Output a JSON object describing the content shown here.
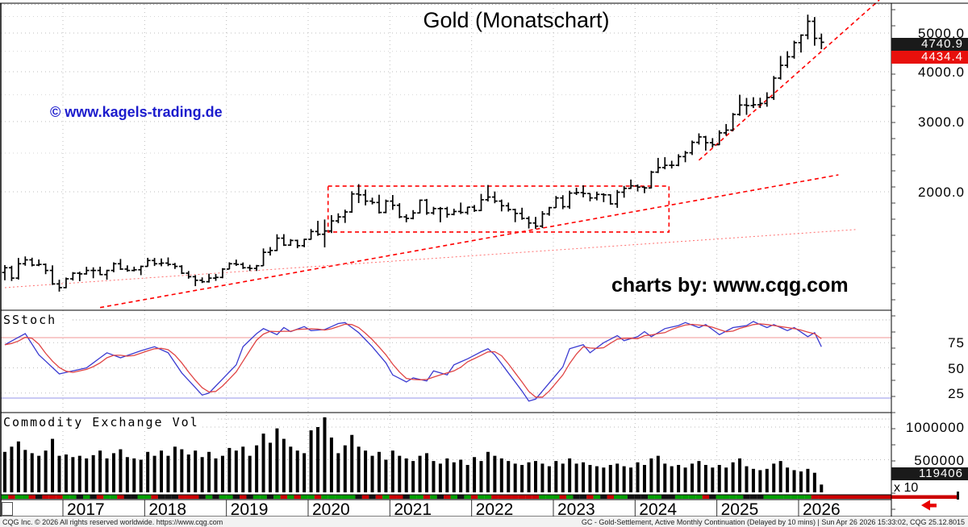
{
  "title": "Gold (Monatschart)",
  "watermark": "© www.kagels-trading.de",
  "credit": "charts by: www.cqg.com",
  "price_badges": {
    "last": "4740.9",
    "settlement": "4434.4"
  },
  "price_axis_labels": [
    "5000.0",
    "4000.0",
    "3000.0",
    "2000.0"
  ],
  "stoch_panel": {
    "label": "SStoch",
    "tick_labels": [
      "75",
      "50",
      "25"
    ]
  },
  "volume_panel": {
    "label": "Commodity Exchange Vol",
    "tick_labels": [
      "1000000",
      "500000"
    ],
    "last_badge": "119406",
    "multiplier": "x 10"
  },
  "x_axis_years": [
    "2017",
    "2018",
    "2019",
    "2020",
    "2021",
    "2022",
    "2023",
    "2024",
    "2025",
    "2026"
  ],
  "status_bar": {
    "left": "CQG Inc. © 2026 All rights reserved worldwide. https://www.cqg.com",
    "right": "GC - Gold-Settlement, Active Monthly Continuation (Delayed by 10 mins) | Sun Apr 26 2026 15:33:02, CQG 25.12.8015"
  },
  "colors": {
    "bars": "#000000",
    "trend": "#ff0000",
    "support_dotted": "#ff7070",
    "stoch_k": "#3b3bd1",
    "stoch_d": "#e04444",
    "overbought_line": "#f5b8b8",
    "oversold_line": "#b8b8f0",
    "badge_black": "#1a1a1a",
    "badge_red": "#e8100c",
    "strip_up": "#00a000",
    "strip_down": "#cc0000",
    "strip_flat": "#111111",
    "watermark_blue": "#1c1ccd",
    "grid": "#bdbdbd"
  },
  "chart_data": {
    "type": "ohlc-bar",
    "title": "Gold (Monatschart)",
    "frequency": "monthly",
    "start": "2016-04",
    "price_scale": "log",
    "price_axis_ticks": [
      5000,
      4000,
      3000,
      2000
    ],
    "last_price": 4740.9,
    "settlement_price": 4434.4,
    "bars": [
      [
        1310,
        1200,
        1290
      ],
      [
        1305,
        1195,
        1215
      ],
      [
        1365,
        1205,
        1320
      ],
      [
        1377,
        1305,
        1350
      ],
      [
        1367,
        1300,
        1310
      ],
      [
        1353,
        1302,
        1315
      ],
      [
        1322,
        1243,
        1270
      ],
      [
        1308,
        1168,
        1175
      ],
      [
        1204,
        1124,
        1150
      ],
      [
        1219,
        1146,
        1210
      ],
      [
        1258,
        1198,
        1250
      ],
      [
        1261,
        1194,
        1245
      ],
      [
        1297,
        1240,
        1270
      ],
      [
        1293,
        1214,
        1270
      ],
      [
        1298,
        1236,
        1240
      ],
      [
        1275,
        1204,
        1270
      ],
      [
        1331,
        1257,
        1320
      ],
      [
        1357,
        1274,
        1280
      ],
      [
        1308,
        1261,
        1270
      ],
      [
        1298,
        1263,
        1275
      ],
      [
        1306,
        1236,
        1300
      ],
      [
        1366,
        1299,
        1345
      ],
      [
        1365,
        1303,
        1320
      ],
      [
        1361,
        1301,
        1325
      ],
      [
        1369,
        1302,
        1315
      ],
      [
        1326,
        1281,
        1300
      ],
      [
        1309,
        1244,
        1250
      ],
      [
        1266,
        1211,
        1225
      ],
      [
        1236,
        1160,
        1200
      ],
      [
        1220,
        1181,
        1190
      ],
      [
        1246,
        1184,
        1215
      ],
      [
        1244,
        1196,
        1220
      ],
      [
        1287,
        1214,
        1280
      ],
      [
        1331,
        1279,
        1320
      ],
      [
        1352,
        1304,
        1315
      ],
      [
        1330,
        1281,
        1290
      ],
      [
        1312,
        1266,
        1285
      ],
      [
        1311,
        1266,
        1305
      ],
      [
        1442,
        1304,
        1410
      ],
      [
        1454,
        1384,
        1425
      ],
      [
        1565,
        1421,
        1530
      ],
      [
        1566,
        1463,
        1470
      ],
      [
        1522,
        1464,
        1510
      ],
      [
        1517,
        1444,
        1465
      ],
      [
        1525,
        1452,
        1520
      ],
      [
        1613,
        1517,
        1590
      ],
      [
        1691,
        1551,
        1565
      ],
      [
        1704,
        1451,
        1595
      ],
      [
        1748,
        1576,
        1690
      ],
      [
        1766,
        1668,
        1730
      ],
      [
        1804,
        1671,
        1780
      ],
      [
        2006,
        1772,
        1975
      ],
      [
        2090,
        1874,
        1965
      ],
      [
        2025,
        1849,
        1895
      ],
      [
        1933,
        1859,
        1880
      ],
      [
        1966,
        1764,
        1775
      ],
      [
        1912,
        1767,
        1895
      ],
      [
        1963,
        1802,
        1850
      ],
      [
        1873,
        1717,
        1730
      ],
      [
        1756,
        1677,
        1715
      ],
      [
        1799,
        1706,
        1770
      ],
      [
        1913,
        1766,
        1905
      ],
      [
        1919,
        1751,
        1770
      ],
      [
        1834,
        1752,
        1815
      ],
      [
        1832,
        1677,
        1815
      ],
      [
        1834,
        1722,
        1755
      ],
      [
        1814,
        1746,
        1785
      ],
      [
        1879,
        1759,
        1775
      ],
      [
        1834,
        1753,
        1830
      ],
      [
        1853,
        1781,
        1795
      ],
      [
        1976,
        1789,
        1910
      ],
      [
        2080,
        1891,
        1940
      ],
      [
        2003,
        1872,
        1895
      ],
      [
        1912,
        1786,
        1845
      ],
      [
        1879,
        1784,
        1805
      ],
      [
        1814,
        1678,
        1765
      ],
      [
        1824,
        1702,
        1715
      ],
      [
        1736,
        1618,
        1670
      ],
      [
        1730,
        1615,
        1640
      ],
      [
        1789,
        1623,
        1760
      ],
      [
        1833,
        1742,
        1825
      ],
      [
        1952,
        1823,
        1930
      ],
      [
        1961,
        1809,
        1835
      ],
      [
        2012,
        1812,
        1985
      ],
      [
        2047,
        1963,
        1990
      ],
      [
        2076,
        1937,
        1980
      ],
      [
        1983,
        1893,
        1930
      ],
      [
        2002,
        1903,
        1970
      ],
      [
        1983,
        1884,
        1965
      ],
      [
        1973,
        1857,
        1865
      ],
      [
        2021,
        1823,
        1995
      ],
      [
        2068,
        1933,
        2040
      ],
      [
        2146,
        2033,
        2070
      ],
      [
        2086,
        2004,
        2055
      ],
      [
        2062,
        1984,
        2045
      ],
      [
        2258,
        2039,
        2240
      ],
      [
        2432,
        2228,
        2300
      ],
      [
        2442,
        2277,
        2330
      ],
      [
        2392,
        2288,
        2330
      ],
      [
        2484,
        2318,
        2450
      ],
      [
        2532,
        2372,
        2505
      ],
      [
        2688,
        2473,
        2660
      ],
      [
        2802,
        2627,
        2745
      ],
      [
        2762,
        2537,
        2655
      ],
      [
        2726,
        2583,
        2625
      ],
      [
        2852,
        2618,
        2810
      ],
      [
        2957,
        2768,
        2855
      ],
      [
        3152,
        2838,
        3125
      ],
      [
        3502,
        3102,
        3300
      ],
      [
        3438,
        3118,
        3290
      ],
      [
        3452,
        3243,
        3305
      ],
      [
        3442,
        3243,
        3330
      ],
      [
        3552,
        3268,
        3445
      ],
      [
        3902,
        3398,
        3855
      ],
      [
        4380,
        3822,
        4150
      ],
      [
        4502,
        4088,
        4360
      ],
      [
        4784,
        4312,
        4730
      ],
      [
        4962,
        4468,
        4940
      ],
      [
        5560,
        4822,
        5350
      ],
      [
        5484,
        4648,
        4850
      ],
      [
        4985,
        4556,
        4741
      ]
    ],
    "volume": [
      620000,
      700000,
      780000,
      650000,
      600000,
      560000,
      640000,
      820000,
      560000,
      580000,
      540000,
      560000,
      520000,
      570000,
      640000,
      520000,
      600000,
      660000,
      540000,
      520000,
      500000,
      620000,
      560000,
      640000,
      560000,
      700000,
      660000,
      580000,
      640000,
      540000,
      620000,
      520000,
      560000,
      680000,
      640000,
      700000,
      560000,
      720000,
      900000,
      760000,
      980000,
      820000,
      700000,
      640000,
      600000,
      950000,
      1000000,
      1150000,
      840000,
      600000,
      720000,
      880000,
      700000,
      640000,
      560000,
      620000,
      500000,
      640000,
      560000,
      520000,
      480000,
      560000,
      600000,
      480000,
      440000,
      520000,
      460000,
      500000,
      420000,
      540000,
      480000,
      620000,
      560000,
      520000,
      480000,
      440000,
      420000,
      460000,
      480000,
      440000,
      400000,
      480000,
      440000,
      520000,
      440000,
      460000,
      420000,
      400000,
      380000,
      420000,
      440000,
      400000,
      380000,
      460000,
      420000,
      520000,
      560000,
      440000,
      400000,
      420000,
      380000,
      440000,
      480000,
      420000,
      380000,
      420000,
      380000,
      460000,
      520000,
      400000,
      360000,
      340000,
      360000,
      440000,
      480000,
      380000,
      340000,
      320000,
      360000,
      300000,
      119406
    ],
    "last_volume": 119406,
    "volume_axis_ticks": [
      1000000,
      500000
    ],
    "stoch_ticks": [
      75,
      50,
      25
    ],
    "stoch_overbought": 80,
    "stoch_oversold": 20,
    "stoch_k": [
      [
        0,
        73
      ],
      [
        3,
        84
      ],
      [
        5,
        63
      ],
      [
        8,
        44
      ],
      [
        12,
        50
      ],
      [
        15,
        65
      ],
      [
        17,
        60
      ],
      [
        20,
        67
      ],
      [
        22,
        71
      ],
      [
        24,
        65
      ],
      [
        26,
        45
      ],
      [
        29,
        23
      ],
      [
        30,
        25
      ],
      [
        32,
        39
      ],
      [
        34,
        53
      ],
      [
        35,
        71
      ],
      [
        37,
        84
      ],
      [
        38,
        89
      ],
      [
        40,
        83
      ],
      [
        41,
        90
      ],
      [
        42,
        86
      ],
      [
        44,
        91
      ],
      [
        45,
        87
      ],
      [
        47,
        88
      ],
      [
        49,
        94
      ],
      [
        50,
        95
      ],
      [
        52,
        85
      ],
      [
        54,
        71
      ],
      [
        56,
        55
      ],
      [
        57,
        43
      ],
      [
        59,
        36
      ],
      [
        60,
        40
      ],
      [
        62,
        37
      ],
      [
        63,
        47
      ],
      [
        65,
        43
      ],
      [
        66,
        53
      ],
      [
        68,
        59
      ],
      [
        70,
        66
      ],
      [
        71,
        69
      ],
      [
        72,
        63
      ],
      [
        74,
        45
      ],
      [
        76,
        27
      ],
      [
        77,
        17
      ],
      [
        78,
        19
      ],
      [
        80,
        35
      ],
      [
        82,
        51
      ],
      [
        83,
        69
      ],
      [
        85,
        73
      ],
      [
        86,
        65
      ],
      [
        88,
        75
      ],
      [
        90,
        82
      ],
      [
        91,
        77
      ],
      [
        93,
        81
      ],
      [
        94,
        86
      ],
      [
        95,
        81
      ],
      [
        97,
        89
      ],
      [
        99,
        92
      ],
      [
        100,
        95
      ],
      [
        102,
        90
      ],
      [
        103,
        93
      ],
      [
        105,
        83
      ],
      [
        107,
        90
      ],
      [
        109,
        92
      ],
      [
        110,
        96
      ],
      [
        112,
        90
      ],
      [
        113,
        93
      ],
      [
        115,
        87
      ],
      [
        116,
        90
      ],
      [
        118,
        81
      ],
      [
        119,
        85
      ],
      [
        120,
        71
      ]
    ],
    "annotations": {
      "consolidation_box": {
        "start_month_index": 47.5,
        "end_month_index": 97.6,
        "price_low": 1585,
        "price_high": 2067
      },
      "trendlines": [
        {
          "name": "steep-uptrend",
          "from": [
            102,
            2400
          ],
          "to": [
            128.5,
            6050
          ],
          "style": "dashed"
        },
        {
          "name": "medium-uptrend",
          "from": [
            14,
            1025
          ],
          "to": [
            122.5,
            2205
          ],
          "style": "dashed"
        },
        {
          "name": "long-support",
          "from": [
            0,
            1150
          ],
          "to": [
            125,
            1608
          ],
          "style": "dotted"
        }
      ]
    }
  }
}
